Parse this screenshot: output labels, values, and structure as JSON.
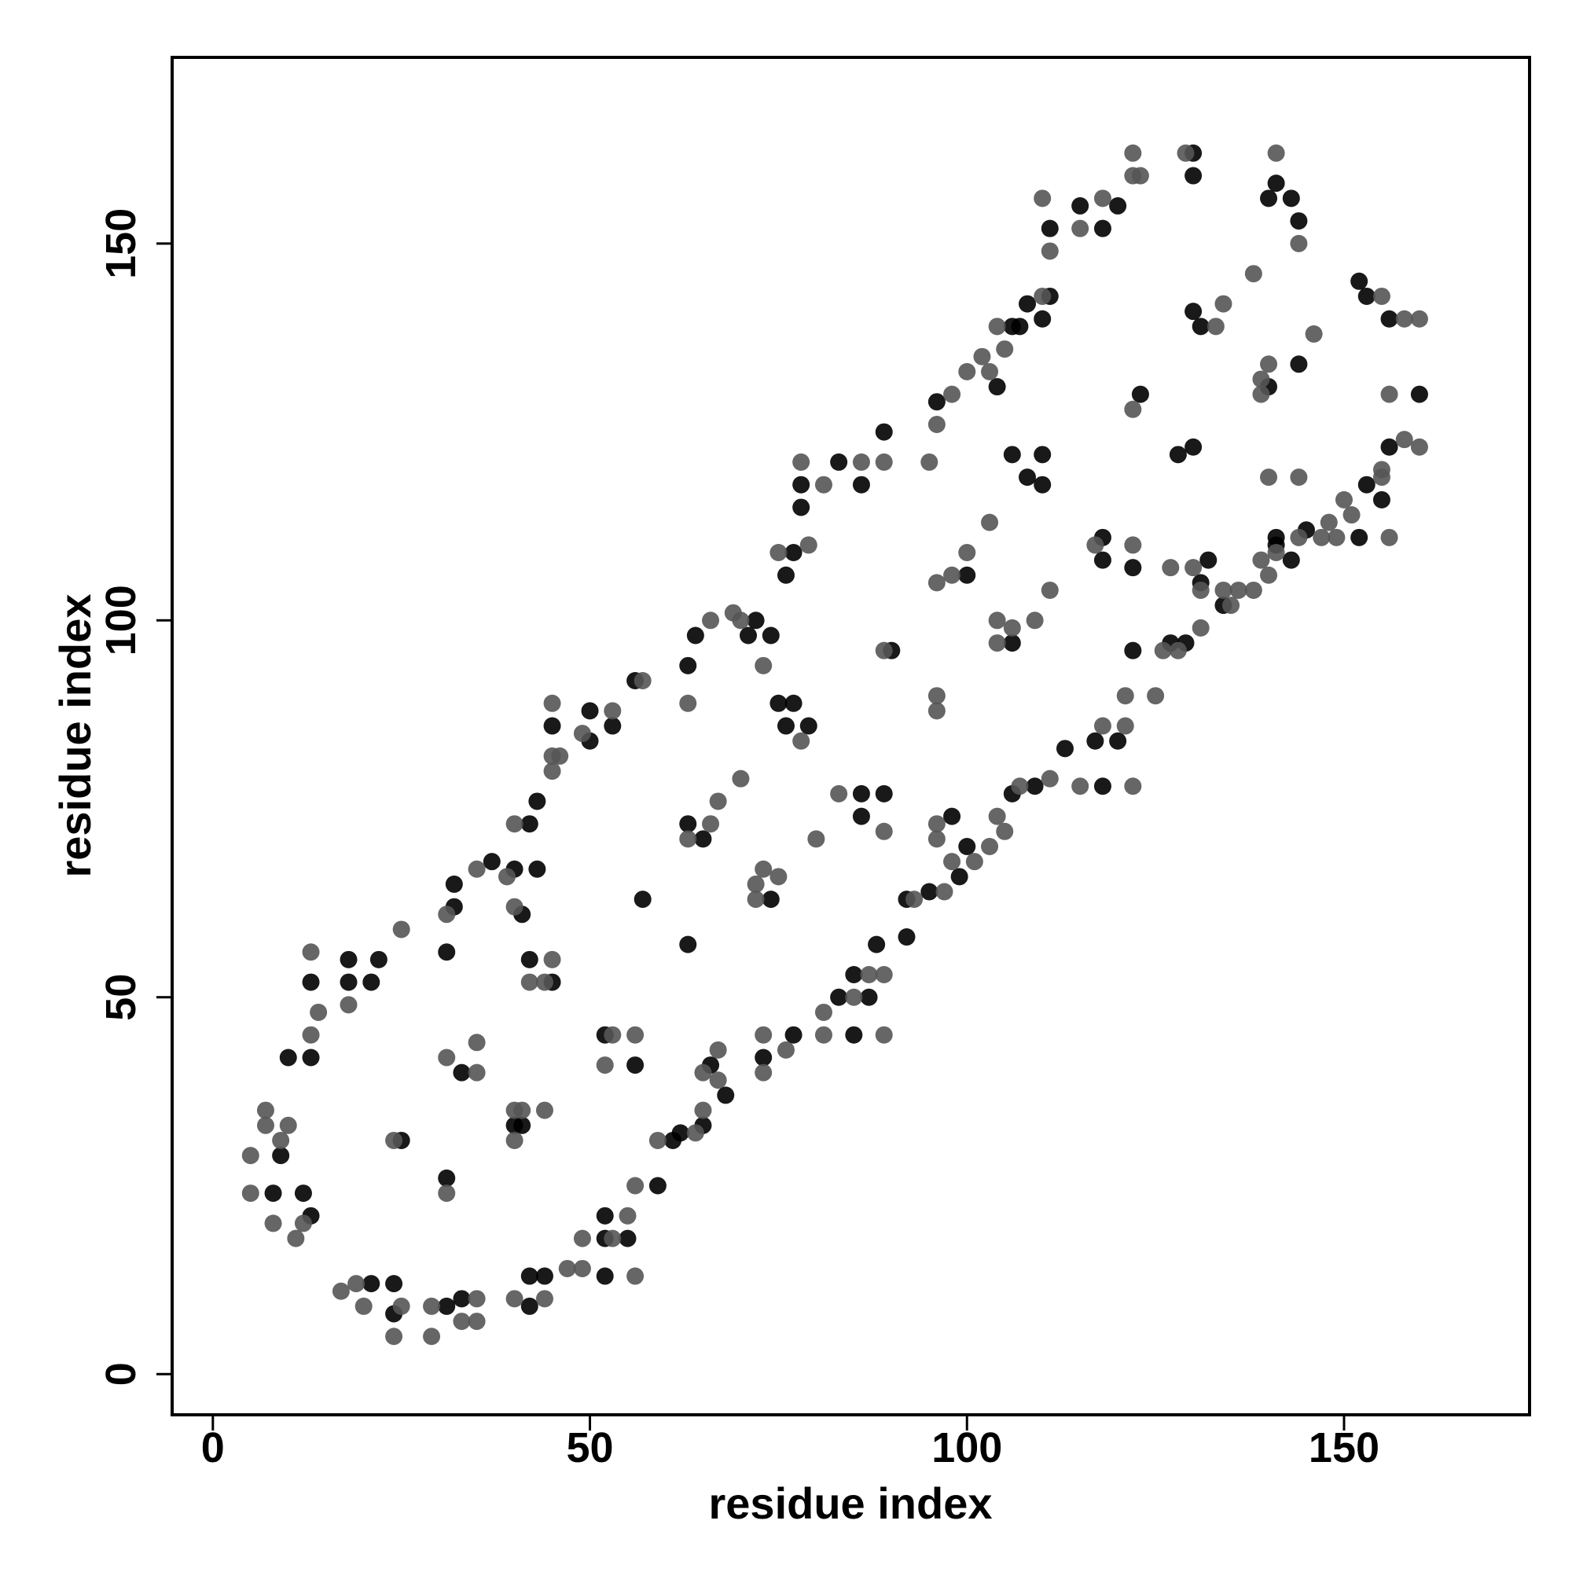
{
  "chart_data": {
    "type": "scatter",
    "xlabel": "residue index",
    "ylabel": "residue index",
    "xlim": [
      -5.4,
      174.6
    ],
    "ylim": [
      -5.4,
      174.7
    ],
    "xticks": [
      0,
      50,
      100,
      150
    ],
    "yticks": [
      0,
      50,
      100,
      150
    ],
    "grid": false,
    "series": [
      {
        "color": "#000000",
        "x": [
          8,
          9,
          10,
          12,
          13,
          13,
          13,
          18,
          18,
          21,
          22,
          31,
          32,
          32,
          37,
          40,
          41,
          43,
          42,
          43,
          45,
          50,
          50,
          53,
          56,
          63,
          64,
          71,
          72,
          74,
          76,
          77,
          78,
          78,
          83,
          86,
          89,
          96,
          104,
          106,
          107,
          108,
          110,
          111,
          111,
          115,
          118,
          120,
          130,
          130,
          141,
          140,
          143,
          144,
          21,
          24,
          24,
          31,
          33,
          42,
          42,
          44,
          52,
          52,
          52,
          55,
          59,
          61,
          62,
          65,
          66,
          68,
          73,
          77,
          83,
          85,
          85,
          87,
          88,
          92,
          92,
          95,
          99,
          100,
          106,
          109,
          113,
          117,
          118,
          120,
          122,
          127,
          129,
          131,
          132,
          134,
          141,
          143,
          145,
          152,
          153,
          155,
          156,
          160,
          152,
          153,
          156,
          31,
          25,
          33,
          40,
          41,
          42,
          45,
          52,
          56,
          57,
          63,
          63,
          65,
          74,
          75,
          76,
          77,
          79,
          86,
          86,
          89,
          90,
          98,
          100,
          106,
          106,
          108,
          110,
          110,
          118,
          118,
          122,
          123,
          128,
          130,
          130,
          131,
          140,
          141,
          144
        ],
        "values": [
          24,
          29,
          42,
          24,
          21,
          42,
          52,
          52,
          55,
          52,
          55,
          56,
          62,
          65,
          68,
          67,
          61,
          67,
          73,
          76,
          86,
          84,
          88,
          86,
          92,
          94,
          98,
          98,
          100,
          98,
          106,
          109,
          115,
          118,
          121,
          118,
          125,
          129,
          131,
          139,
          139,
          142,
          140,
          143,
          152,
          155,
          152,
          155,
          159,
          162,
          158,
          156,
          156,
          153,
          12,
          12,
          8,
          9,
          10,
          9,
          13,
          13,
          18,
          13,
          21,
          18,
          25,
          31,
          32,
          33,
          41,
          37,
          42,
          45,
          50,
          45,
          53,
          50,
          57,
          58,
          63,
          64,
          66,
          70,
          77,
          78,
          83,
          84,
          78,
          84,
          96,
          97,
          97,
          105,
          108,
          102,
          111,
          108,
          112,
          111,
          118,
          116,
          123,
          130,
          145,
          143,
          140,
          26,
          31,
          40,
          33,
          33,
          55,
          52,
          45,
          41,
          63,
          57,
          73,
          71,
          63,
          89,
          86,
          89,
          86,
          77,
          74,
          77,
          96,
          74,
          106,
          97,
          122,
          119,
          122,
          118,
          111,
          108,
          107,
          130,
          122,
          123,
          141,
          139,
          131,
          110,
          134
        ]
      },
      {
        "color": "#555555",
        "x": [
          5,
          5,
          7,
          7,
          8,
          9,
          10,
          11,
          12,
          13,
          14,
          13,
          18,
          25,
          31,
          35,
          39,
          40,
          40,
          45,
          45,
          45,
          46,
          49,
          53,
          57,
          63,
          66,
          69,
          70,
          73,
          75,
          79,
          78,
          81,
          86,
          89,
          95,
          96,
          98,
          100,
          102,
          103,
          104,
          105,
          110,
          111,
          110,
          115,
          118,
          122,
          122,
          123,
          129,
          141,
          144,
          17,
          19,
          20,
          24,
          25,
          29,
          29,
          33,
          35,
          35,
          40,
          44,
          47,
          49,
          49,
          53,
          55,
          56,
          56,
          59,
          64,
          65,
          65,
          67,
          67,
          73,
          73,
          76,
          81,
          81,
          85,
          87,
          89,
          89,
          93,
          97,
          98,
          101,
          103,
          104,
          105,
          107,
          111,
          115,
          118,
          121,
          121,
          122,
          125,
          126,
          128,
          131,
          131,
          134,
          135,
          136,
          138,
          139,
          140,
          144,
          147,
          148,
          149,
          150,
          151,
          155,
          155,
          156,
          158,
          160,
          156,
          155,
          158,
          160,
          31,
          24,
          31,
          35,
          35,
          40,
          40,
          41,
          44,
          42,
          44,
          45,
          52,
          53,
          56,
          63,
          66,
          67,
          70,
          72,
          72,
          73,
          75,
          78,
          80,
          83,
          89,
          89,
          96,
          96,
          96,
          96,
          96,
          98,
          100,
          103,
          104,
          104,
          106,
          109,
          111,
          117,
          122,
          122,
          127,
          130,
          133,
          134,
          138,
          139,
          139,
          140,
          140,
          144,
          146,
          141
        ],
        "values": [
          24,
          29,
          33,
          35,
          20,
          31,
          33,
          18,
          20,
          45,
          48,
          56,
          49,
          59,
          61,
          67,
          66,
          62,
          73,
          80,
          82,
          89,
          82,
          85,
          88,
          92,
          89,
          100,
          101,
          100,
          94,
          109,
          110,
          121,
          118,
          121,
          121,
          121,
          126,
          130,
          133,
          135,
          133,
          139,
          136,
          143,
          149,
          156,
          152,
          156,
          159,
          162,
          159,
          162,
          162,
          150,
          11,
          12,
          9,
          5,
          9,
          5,
          9,
          7,
          7,
          10,
          10,
          10,
          14,
          14,
          18,
          18,
          21,
          25,
          13,
          31,
          32,
          35,
          40,
          39,
          43,
          45,
          40,
          43,
          45,
          48,
          50,
          53,
          53,
          45,
          63,
          64,
          68,
          68,
          70,
          74,
          72,
          78,
          79,
          78,
          86,
          86,
          90,
          78,
          90,
          96,
          96,
          99,
          104,
          104,
          102,
          104,
          104,
          108,
          106,
          111,
          111,
          113,
          111,
          116,
          114,
          119,
          120,
          111,
          124,
          123,
          130,
          143,
          140,
          140,
          24,
          31,
          42,
          40,
          44,
          31,
          35,
          35,
          35,
          52,
          52,
          55,
          41,
          45,
          45,
          71,
          73,
          76,
          79,
          65,
          63,
          67,
          66,
          84,
          71,
          77,
          72,
          96,
          71,
          73,
          88,
          90,
          105,
          106,
          109,
          113,
          100,
          97,
          99,
          100,
          104,
          110,
          110,
          128,
          107,
          107,
          139,
          142,
          146,
          132,
          130,
          134,
          119,
          119,
          138,
          109
        ]
      }
    ]
  }
}
